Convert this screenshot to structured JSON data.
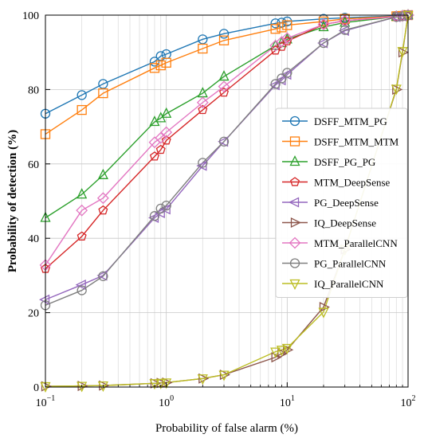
{
  "chart_data": {
    "type": "line",
    "title": "",
    "xlabel": "Probability of false alarm (%)",
    "ylabel": "Probability of detection (%)",
    "x_scale": "log",
    "xlim": [
      0.1,
      100
    ],
    "ylim": [
      0,
      100
    ],
    "x_ticks": [
      {
        "value": 0.1,
        "base": "10",
        "exp": "−1"
      },
      {
        "value": 1,
        "base": "10",
        "exp": "0"
      },
      {
        "value": 10,
        "base": "10",
        "exp": "1"
      },
      {
        "value": 100,
        "base": "10",
        "exp": "2"
      }
    ],
    "y_ticks": [
      0,
      20,
      40,
      60,
      80,
      100
    ],
    "grid": true,
    "legend_position": "center-right",
    "series": [
      {
        "name": "DSFF_MTM_PG",
        "color": "#1f77b4",
        "marker": "circle",
        "x": [
          0.1,
          0.2,
          0.3,
          0.8,
          0.9,
          1,
          2,
          3,
          8,
          9,
          10,
          20,
          30,
          80,
          90,
          100
        ],
        "y": [
          73.5,
          78.5,
          81.5,
          87.5,
          89,
          89.5,
          93.5,
          95,
          97.8,
          98,
          98.3,
          99,
          99.3,
          99.8,
          99.9,
          100
        ]
      },
      {
        "name": "DSFF_MTM_MTM",
        "color": "#ff7f0e",
        "marker": "square",
        "x": [
          0.1,
          0.2,
          0.3,
          0.8,
          0.9,
          1,
          2,
          3,
          8,
          9,
          10,
          20,
          30,
          80,
          90,
          100
        ],
        "y": [
          68,
          74.5,
          79,
          85.8,
          86.5,
          87.2,
          91,
          93.2,
          96.3,
          96.7,
          97.3,
          98.3,
          99,
          99.7,
          99.8,
          100
        ]
      },
      {
        "name": "DSFF_PG_PG",
        "color": "#2ca02c",
        "marker": "triangle-up",
        "x": [
          0.1,
          0.2,
          0.3,
          0.8,
          0.9,
          1,
          2,
          3,
          8,
          9,
          10,
          20,
          30,
          80,
          90,
          100
        ],
        "y": [
          45.5,
          51.8,
          57,
          71.3,
          72.3,
          73.5,
          79,
          83.5,
          91.8,
          92.5,
          93.5,
          96.8,
          98,
          99.6,
          99.8,
          100
        ]
      },
      {
        "name": "MTM_DeepSense",
        "color": "#d62728",
        "marker": "pentagon",
        "x": [
          0.1,
          0.2,
          0.3,
          0.8,
          0.9,
          1,
          2,
          3,
          8,
          9,
          10,
          20,
          30,
          80,
          90,
          100
        ],
        "y": [
          31.8,
          40.5,
          47.5,
          62,
          63.8,
          66.3,
          74.5,
          79.2,
          90.5,
          91.5,
          93,
          97.5,
          98.5,
          99.6,
          99.8,
          100
        ]
      },
      {
        "name": "PG_DeepSense",
        "color": "#9467bd",
        "marker": "triangle-left",
        "x": [
          0.1,
          0.2,
          0.3,
          0.8,
          0.9,
          1,
          2,
          3,
          8,
          9,
          10,
          20,
          30,
          80,
          90,
          100
        ],
        "y": [
          23.5,
          27.5,
          30,
          45.5,
          46.8,
          47.8,
          59.5,
          66,
          81.2,
          82.5,
          84,
          92.5,
          95.8,
          99.5,
          99.7,
          100
        ]
      },
      {
        "name": "IQ_DeepSense",
        "color": "#8c564b",
        "marker": "triangle-right",
        "x": [
          0.1,
          0.2,
          0.3,
          0.8,
          0.9,
          1,
          2,
          3,
          8,
          9,
          10,
          20,
          30,
          80,
          90,
          100
        ],
        "y": [
          0.2,
          0.3,
          0.4,
          1,
          1.1,
          1.2,
          2.3,
          3.3,
          8,
          9,
          10,
          21.5,
          37,
          80,
          90,
          100
        ]
      },
      {
        "name": "MTM_ParallelCNN",
        "color": "#e377c2",
        "marker": "diamond",
        "x": [
          0.1,
          0.2,
          0.3,
          0.8,
          0.9,
          1,
          2,
          3,
          8,
          9,
          10,
          20,
          30,
          80,
          90,
          100
        ],
        "y": [
          32.8,
          47.5,
          50.8,
          65.8,
          67,
          68.5,
          76.5,
          80.8,
          91.8,
          92.8,
          93.8,
          97.5,
          98.5,
          99.6,
          99.8,
          100
        ]
      },
      {
        "name": "PG_ParallelCNN",
        "color": "#7f7f7f",
        "marker": "circle",
        "x": [
          0.1,
          0.2,
          0.3,
          0.8,
          0.9,
          1,
          2,
          3,
          8,
          9,
          10,
          20,
          30,
          80,
          90,
          100
        ],
        "y": [
          22,
          26,
          29.8,
          46,
          48,
          48.8,
          60.3,
          66,
          81.5,
          83,
          84.5,
          92.5,
          96,
          99.5,
          99.7,
          100
        ]
      },
      {
        "name": "IQ_ParallelCNN",
        "color": "#bcbd22",
        "marker": "triangle-down",
        "x": [
          0.1,
          0.2,
          0.3,
          0.8,
          0.9,
          1,
          2,
          3,
          8,
          9,
          10,
          20,
          30,
          80,
          90,
          100
        ],
        "y": [
          0.2,
          0.3,
          0.4,
          1,
          1.1,
          1.2,
          2.3,
          3.3,
          9.5,
          10,
          10.5,
          20.2,
          37,
          80.2,
          90.3,
          100
        ]
      }
    ]
  }
}
